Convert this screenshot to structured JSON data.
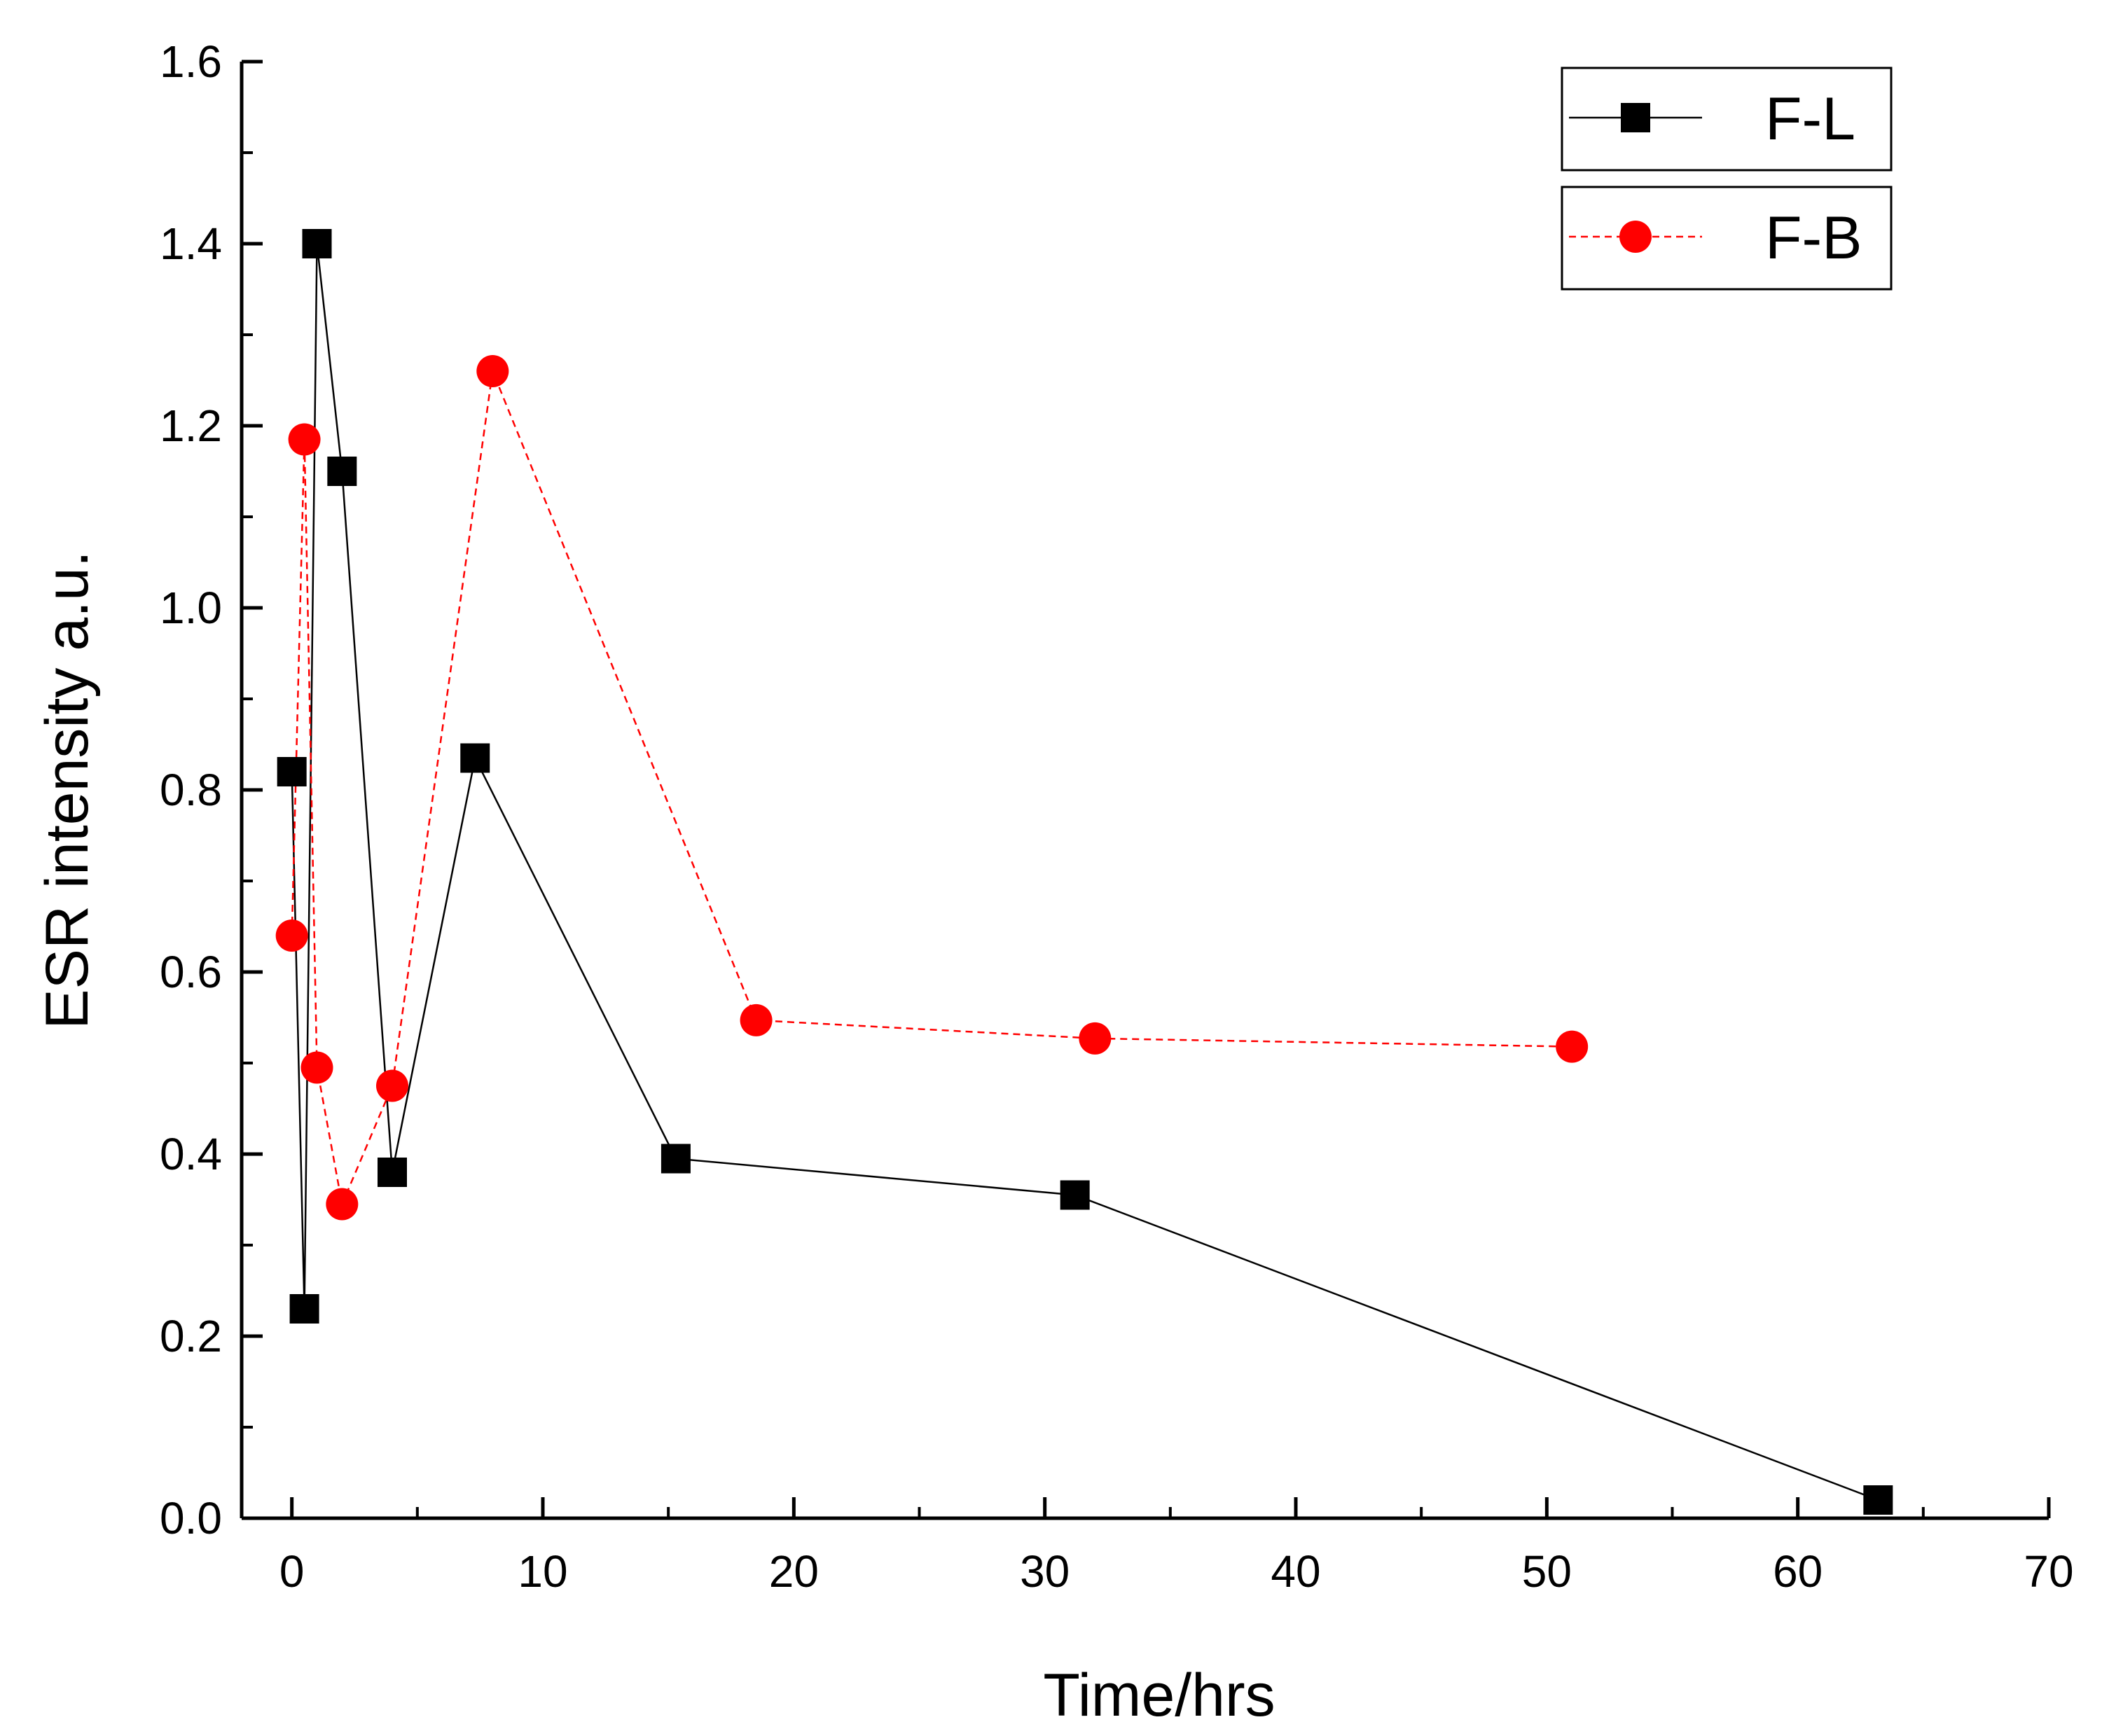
{
  "chart_data": {
    "type": "line",
    "title": "",
    "xlabel": "Time/hrs",
    "ylabel": "ESR intensity a.u.",
    "xlim": [
      -2,
      70
    ],
    "ylim": [
      0,
      1.6
    ],
    "x_ticks": [
      0,
      10,
      20,
      30,
      40,
      50,
      60,
      70
    ],
    "x_tick_labels": [
      "0",
      "10",
      "20",
      "30",
      "40",
      "50",
      "60",
      "70"
    ],
    "y_ticks": [
      0.0,
      0.2,
      0.4,
      0.6,
      0.8,
      1.0,
      1.2,
      1.4,
      1.6
    ],
    "y_tick_labels": [
      "0.0",
      "0.2",
      "0.4",
      "0.6",
      "0.8",
      "1.0",
      "1.2",
      "1.4",
      "1.6"
    ],
    "grid": false,
    "legend_position": "top-right",
    "series": [
      {
        "name": "F-L",
        "marker": "square",
        "line_style": "solid",
        "color": "#000000",
        "x": [
          0,
          0.5,
          1,
          2,
          4,
          7.3,
          15.3,
          31.2,
          63.2
        ],
        "y": [
          0.82,
          0.23,
          1.4,
          1.15,
          0.38,
          0.835,
          0.395,
          0.355,
          0.02
        ]
      },
      {
        "name": "F-B",
        "marker": "circle",
        "line_style": "dashed",
        "color": "#ff0000",
        "x": [
          0,
          0.5,
          1,
          2,
          4,
          8,
          18.5,
          32,
          51
        ],
        "y": [
          0.64,
          1.185,
          0.495,
          0.345,
          0.475,
          1.26,
          0.547,
          0.527,
          0.518
        ]
      }
    ]
  }
}
